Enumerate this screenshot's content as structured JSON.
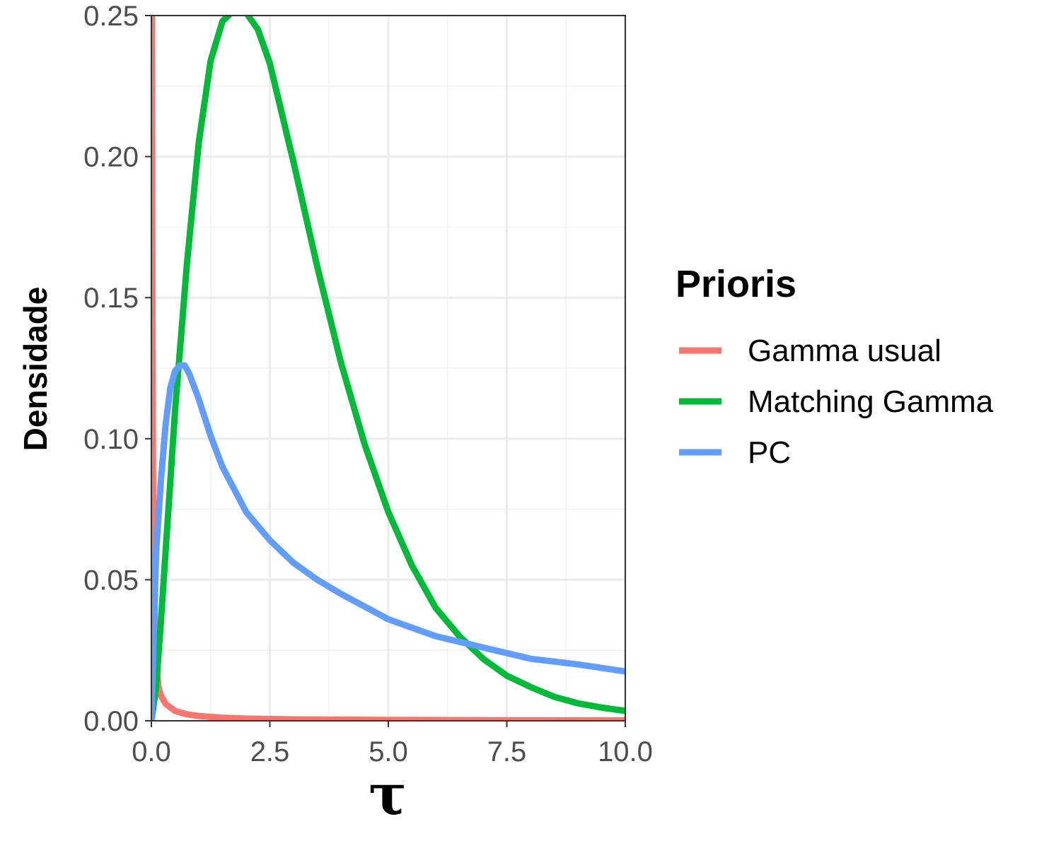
{
  "chart_data": {
    "type": "line",
    "xlabel": "τ",
    "ylabel": "Densidade",
    "xlim": [
      0,
      10
    ],
    "ylim": [
      0,
      0.25
    ],
    "x_ticks": [
      0.0,
      2.5,
      5.0,
      7.5,
      10.0
    ],
    "x_tick_labels": [
      "0.0",
      "2.5",
      "5.0",
      "7.5",
      "10.0"
    ],
    "y_ticks": [
      0.0,
      0.05,
      0.1,
      0.15,
      0.2,
      0.25
    ],
    "y_tick_labels": [
      "0.00",
      "0.05",
      "0.10",
      "0.15",
      "0.20",
      "0.25"
    ],
    "grid": true,
    "legend": {
      "title": "Prioris",
      "position": "right"
    },
    "series": [
      {
        "name": "Gamma usual",
        "color": "#F8766D",
        "x": [
          0.0,
          0.01,
          0.02,
          0.03,
          0.05,
          0.08,
          0.1,
          0.15,
          0.2,
          0.3,
          0.5,
          0.75,
          1.0,
          1.5,
          2.0,
          3.0,
          5.0,
          7.5,
          10.0
        ],
        "y": [
          0.25,
          0.25,
          0.16,
          0.1,
          0.05,
          0.03,
          0.022,
          0.012,
          0.009,
          0.006,
          0.0035,
          0.0023,
          0.0017,
          0.0011,
          0.0008,
          0.0005,
          0.0003,
          0.0002,
          0.00015
        ]
      },
      {
        "name": "Matching Gamma",
        "color": "#00BA38",
        "x": [
          0.0,
          0.1,
          0.2,
          0.3,
          0.5,
          0.75,
          1.0,
          1.25,
          1.5,
          1.75,
          1.9,
          2.0,
          2.25,
          2.5,
          3.0,
          3.5,
          4.0,
          4.5,
          5.0,
          5.5,
          6.0,
          6.5,
          7.0,
          7.5,
          8.0,
          8.5,
          9.0,
          9.5,
          10.0
        ],
        "y": [
          0.0,
          0.012,
          0.035,
          0.06,
          0.11,
          0.162,
          0.205,
          0.234,
          0.248,
          0.252,
          0.252,
          0.251,
          0.245,
          0.233,
          0.198,
          0.161,
          0.127,
          0.098,
          0.074,
          0.055,
          0.04,
          0.03,
          0.022,
          0.016,
          0.012,
          0.0085,
          0.0062,
          0.0047,
          0.0035
        ]
      },
      {
        "name": "PC",
        "color": "#619CFF",
        "x": [
          0.0,
          0.05,
          0.1,
          0.2,
          0.3,
          0.4,
          0.5,
          0.6,
          0.7,
          0.8,
          1.0,
          1.25,
          1.5,
          2.0,
          2.5,
          3.0,
          3.5,
          4.0,
          5.0,
          6.0,
          7.0,
          8.0,
          9.0,
          10.0
        ],
        "y": [
          0.0,
          0.03,
          0.06,
          0.085,
          0.105,
          0.118,
          0.124,
          0.126,
          0.126,
          0.123,
          0.114,
          0.101,
          0.09,
          0.074,
          0.064,
          0.056,
          0.05,
          0.045,
          0.036,
          0.03,
          0.026,
          0.022,
          0.02,
          0.0175
        ]
      }
    ]
  }
}
